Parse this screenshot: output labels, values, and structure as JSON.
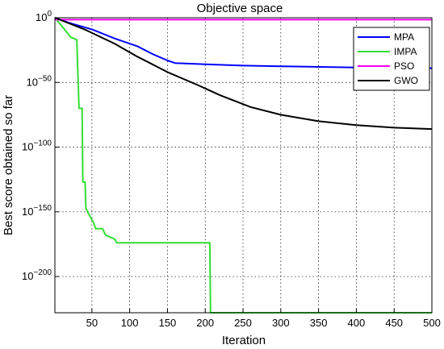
{
  "chart_data": {
    "type": "line",
    "title": "Objective space",
    "xlabel": "Iteration",
    "ylabel": "Best score obtained so far",
    "xlim": [
      1,
      500
    ],
    "ylim_log10": [
      -228,
      0
    ],
    "yscale": "log",
    "grid": true,
    "legend_position": "top-right",
    "x_ticks": [
      50,
      100,
      150,
      200,
      250,
      300,
      350,
      400,
      450,
      500
    ],
    "y_ticks": [
      {
        "exp": 0,
        "base": "10",
        "sup": "0"
      },
      {
        "exp": -50,
        "base": "10",
        "sup": "−50"
      },
      {
        "exp": -100,
        "base": "10",
        "sup": "−100"
      },
      {
        "exp": -150,
        "base": "10",
        "sup": "−150"
      },
      {
        "exp": -200,
        "base": "10",
        "sup": "−200"
      }
    ],
    "series": [
      {
        "name": "MPA",
        "color": "#0000ff",
        "log10_y_by_x": [
          [
            1,
            0
          ],
          [
            20,
            -4
          ],
          [
            50,
            -9
          ],
          [
            80,
            -16
          ],
          [
            110,
            -22
          ],
          [
            130,
            -28
          ],
          [
            150,
            -33
          ],
          [
            160,
            -35
          ],
          [
            200,
            -36
          ],
          [
            250,
            -37
          ],
          [
            300,
            -37.5
          ],
          [
            400,
            -38.5
          ],
          [
            500,
            -39
          ]
        ]
      },
      {
        "name": "IMPA",
        "color": "#33dd33",
        "log10_y_by_x": [
          [
            1,
            0
          ],
          [
            8,
            -5
          ],
          [
            22,
            -15
          ],
          [
            30,
            -17
          ],
          [
            33,
            -70
          ],
          [
            37,
            -70
          ],
          [
            38,
            -127
          ],
          [
            41,
            -127
          ],
          [
            42,
            -147
          ],
          [
            46,
            -152
          ],
          [
            52,
            -158
          ],
          [
            55,
            -163
          ],
          [
            64,
            -163
          ],
          [
            68,
            -168
          ],
          [
            80,
            -171
          ],
          [
            83,
            -174
          ],
          [
            206,
            -174
          ],
          [
            207,
            -228
          ],
          [
            500,
            -228
          ]
        ]
      },
      {
        "name": "PSO",
        "color": "#ff00ff",
        "log10_y_by_x": [
          [
            1,
            -1.5
          ],
          [
            500,
            -1.5
          ]
        ]
      },
      {
        "name": "GWO",
        "color": "#000000",
        "log10_y_by_x": [
          [
            1,
            0
          ],
          [
            40,
            -9
          ],
          [
            80,
            -20
          ],
          [
            110,
            -30
          ],
          [
            150,
            -42
          ],
          [
            190,
            -52
          ],
          [
            220,
            -60
          ],
          [
            260,
            -69
          ],
          [
            300,
            -75
          ],
          [
            350,
            -80
          ],
          [
            400,
            -83
          ],
          [
            450,
            -85
          ],
          [
            500,
            -86
          ]
        ]
      }
    ]
  }
}
